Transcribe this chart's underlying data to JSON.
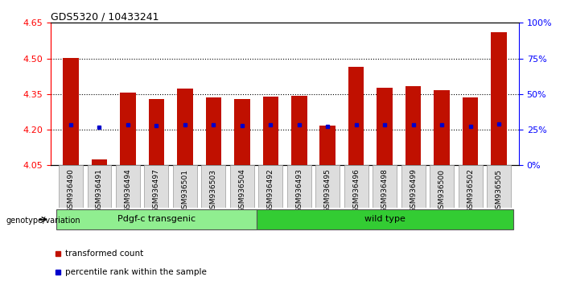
{
  "title": "GDS5320 / 10433241",
  "samples": [
    "GSM936490",
    "GSM936491",
    "GSM936494",
    "GSM936497",
    "GSM936501",
    "GSM936503",
    "GSM936504",
    "GSM936492",
    "GSM936493",
    "GSM936495",
    "GSM936496",
    "GSM936498",
    "GSM936499",
    "GSM936500",
    "GSM936502",
    "GSM936505"
  ],
  "red_values": [
    4.503,
    4.075,
    4.355,
    4.328,
    4.373,
    4.337,
    4.328,
    4.338,
    4.343,
    4.218,
    4.465,
    4.375,
    4.383,
    4.365,
    4.335,
    4.612
  ],
  "blue_values": [
    4.222,
    4.21,
    4.22,
    4.218,
    4.221,
    4.222,
    4.218,
    4.221,
    4.221,
    4.215,
    4.222,
    4.222,
    4.222,
    4.221,
    4.215,
    4.224
  ],
  "ymin": 4.05,
  "ymax": 4.65,
  "yticks_left": [
    4.05,
    4.2,
    4.35,
    4.5,
    4.65
  ],
  "yticks_right": [
    0,
    25,
    50,
    75,
    100
  ],
  "group1_label": "Pdgf-c transgenic",
  "group2_label": "wild type",
  "group1_count": 7,
  "group2_count": 9,
  "bar_color": "#C01000",
  "blue_color": "#0000CC",
  "group1_bg": "#90EE90",
  "group2_bg": "#33CC33",
  "bar_bottom": 4.05,
  "legend_label1": "transformed count",
  "legend_label2": "percentile rank within the sample",
  "genotype_label": "genotype/variation",
  "grid_vals": [
    4.2,
    4.35,
    4.5
  ],
  "bar_width": 0.55
}
